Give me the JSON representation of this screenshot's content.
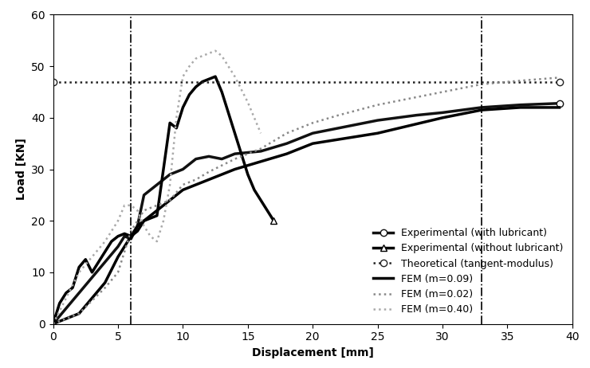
{
  "chart_data": {
    "type": "line",
    "x_label": "Displacement [mm]",
    "y_label": "Load [KN]",
    "xlim": [
      0,
      40
    ],
    "ylim": [
      0,
      60
    ],
    "xticks": [
      0,
      5,
      10,
      15,
      20,
      25,
      30,
      35,
      40
    ],
    "yticks": [
      0,
      10,
      20,
      30,
      40,
      50,
      60
    ],
    "grid": false,
    "legend": "lower right",
    "vertical_lines": [
      6,
      33
    ],
    "series": [
      {
        "name": "Experimental (with lubricant)",
        "color": "#111111",
        "marker": "o",
        "line_style": "solid",
        "x": [
          0,
          1,
          2,
          3,
          4,
          5,
          5.5,
          6,
          6.5,
          7,
          8,
          9,
          10,
          11,
          12,
          13,
          14,
          16,
          18,
          20,
          22,
          25,
          28,
          30,
          33,
          36,
          39
        ],
        "values": [
          0,
          3,
          6,
          9,
          12,
          15,
          17,
          16.5,
          19,
          25,
          27,
          29,
          30,
          32,
          32.5,
          32,
          33,
          33.5,
          35,
          37,
          38,
          39.5,
          40.5,
          41,
          42,
          42.5,
          42.8
        ]
      },
      {
        "name": "Experimental (without lubricant)",
        "color": "#000000",
        "marker": "^",
        "line_style": "solid",
        "x": [
          0,
          0.5,
          1,
          1.5,
          2,
          2.5,
          3,
          3.5,
          4,
          4.5,
          5,
          5.5,
          6,
          6.5,
          7,
          7.5,
          8,
          8.5,
          9,
          9.5,
          10,
          10.5,
          11,
          11.5,
          12,
          12.5,
          13,
          13.5,
          14,
          14.5,
          15,
          15.5,
          16,
          16.5,
          17
        ],
        "values": [
          0,
          4,
          6,
          7,
          11,
          12.5,
          10,
          12,
          14,
          16,
          17,
          17.5,
          17,
          18,
          20,
          20.5,
          21,
          30,
          39,
          38,
          42,
          44.5,
          46,
          47,
          47.5,
          48,
          45,
          41,
          37,
          33,
          29,
          26,
          24,
          22,
          20
        ]
      },
      {
        "name": "Theoretical (tangent-modulus)",
        "color": "#222222",
        "marker": "o",
        "line_style": "dotted",
        "x": [
          0,
          39
        ],
        "values": [
          47,
          47
        ]
      },
      {
        "name": "FEM (m=0.09)",
        "color": "#000000",
        "marker": "none",
        "line_style": "solid",
        "x": [
          0,
          2,
          4,
          5,
          6,
          6.5,
          7,
          8,
          9,
          10,
          12,
          14,
          16,
          18,
          20,
          25,
          30,
          33,
          36,
          39
        ],
        "values": [
          0,
          2,
          8,
          13,
          17,
          19,
          20,
          22,
          24,
          26,
          28,
          30,
          31.5,
          33,
          35,
          37,
          40,
          41.5,
          42,
          42
        ]
      },
      {
        "name": "FEM (m=0.02)",
        "color": "#888888",
        "marker": "none",
        "line_style": "dotted",
        "x": [
          0,
          2,
          4,
          5,
          6,
          7,
          8,
          9,
          10,
          11,
          12,
          14,
          16,
          18,
          20,
          22,
          25,
          28,
          30,
          33,
          36,
          39
        ],
        "values": [
          0,
          2,
          7,
          10,
          18,
          22,
          23,
          24,
          27,
          28,
          29.5,
          32,
          34,
          37,
          39,
          40.5,
          42.5,
          44,
          45,
          46.5,
          47.2,
          47.8
        ]
      },
      {
        "name": "FEM (m=0.40)",
        "color": "#aaaaaa",
        "marker": "none",
        "line_style": "dotted",
        "x": [
          0,
          1,
          2,
          3,
          4,
          5,
          5.5,
          6,
          6.5,
          7,
          7.5,
          8,
          8.5,
          9,
          9.5,
          10,
          10.5,
          11,
          12,
          12.5,
          13,
          14,
          15,
          16
        ],
        "values": [
          0,
          5,
          10,
          13,
          16,
          20,
          23,
          23,
          22,
          19,
          17,
          16,
          20,
          27,
          40,
          48,
          50,
          51.5,
          52.5,
          53,
          52,
          48,
          43,
          37
        ]
      }
    ]
  }
}
